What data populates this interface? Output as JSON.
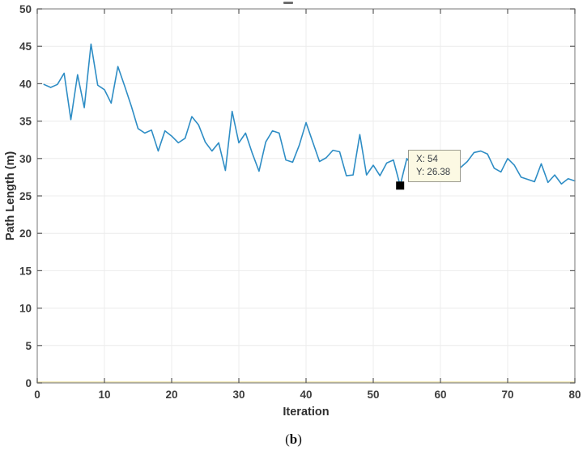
{
  "figure": {
    "caption": {
      "open": "(",
      "letter": "b",
      "close": ")"
    }
  },
  "chart_data": {
    "type": "line",
    "title": "",
    "xlabel": "Iteration",
    "ylabel": "Path Length (m)",
    "xlim": [
      0,
      80
    ],
    "ylim": [
      0,
      50
    ],
    "x_ticks": [
      0,
      10,
      20,
      30,
      40,
      50,
      60,
      70,
      80
    ],
    "y_ticks": [
      0,
      5,
      10,
      15,
      20,
      25,
      30,
      35,
      40,
      45,
      50
    ],
    "grid": true,
    "legend": "none",
    "colors": {
      "line": "#2e8dc5",
      "baseline": "#ece0a4",
      "axis": "#8c8c8c",
      "tick": "#5a5a5a",
      "grid": "#ececec",
      "marker": "#000000",
      "datatip_bg": "#fcf9e3",
      "datatip_border": "#9b9b8f"
    },
    "series": [
      {
        "name": "path-length",
        "color": "#2e8dc5",
        "x_start": 1,
        "values": [
          39.9,
          39.5,
          39.9,
          41.4,
          35.2,
          41.2,
          36.8,
          45.3,
          39.8,
          39.2,
          37.4,
          42.3,
          39.7,
          37.0,
          34.0,
          33.4,
          33.8,
          31.0,
          33.7,
          33.0,
          32.1,
          32.7,
          35.6,
          34.5,
          32.2,
          31.0,
          32.1,
          28.4,
          36.3,
          32.1,
          33.4,
          30.7,
          28.3,
          32.2,
          33.7,
          33.4,
          29.8,
          29.5,
          31.8,
          34.8,
          32.2,
          29.6,
          30.1,
          31.1,
          30.9,
          27.7,
          27.8,
          33.2,
          27.8,
          29.1,
          27.7,
          29.4,
          29.8,
          26.38,
          30.0,
          28.8,
          28.2,
          27.8,
          27.4,
          27.2,
          27.6,
          28.0,
          28.8,
          29.6,
          30.8,
          31.0,
          30.6,
          28.7,
          28.2,
          30.0,
          29.1,
          27.5,
          27.2,
          26.9,
          29.3,
          26.8,
          27.8,
          26.6,
          27.3,
          27.0
        ]
      },
      {
        "name": "baseline-zero",
        "color": "#ece0a4",
        "value": 0
      }
    ],
    "datatip": {
      "x": 54,
      "y": 26.38,
      "line1": "X: 54",
      "line2": "Y: 26.38"
    }
  }
}
